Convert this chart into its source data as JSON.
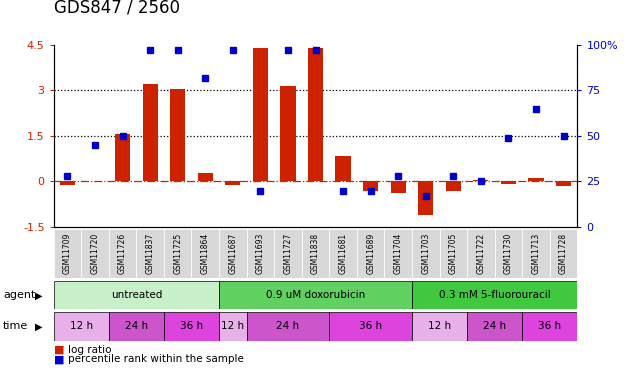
{
  "title": "GDS847 / 2560",
  "samples": [
    "GSM11709",
    "GSM11720",
    "GSM11726",
    "GSM11837",
    "GSM11725",
    "GSM11864",
    "GSM11687",
    "GSM11693",
    "GSM11727",
    "GSM11838",
    "GSM11681",
    "GSM11689",
    "GSM11704",
    "GSM11703",
    "GSM11705",
    "GSM11722",
    "GSM11730",
    "GSM11713",
    "GSM11728"
  ],
  "log_ratio": [
    -0.12,
    0.02,
    1.55,
    3.2,
    3.05,
    0.28,
    -0.12,
    4.4,
    3.15,
    4.4,
    0.85,
    -0.32,
    -0.38,
    -1.1,
    -0.32,
    0.05,
    -0.08,
    0.1,
    -0.15
  ],
  "pct_rank": [
    28,
    45,
    50,
    97,
    97,
    82,
    97,
    20,
    97,
    97,
    20,
    20,
    28,
    17,
    28,
    25,
    49,
    65,
    50
  ],
  "agents": [
    {
      "label": "untreated",
      "start": 0,
      "end": 6,
      "color": "#c8f0c8"
    },
    {
      "label": "0.9 uM doxorubicin",
      "start": 6,
      "end": 13,
      "color": "#60d060"
    },
    {
      "label": "0.3 mM 5-fluorouracil",
      "start": 13,
      "end": 19,
      "color": "#40c840"
    }
  ],
  "times": [
    {
      "label": "12 h",
      "start": 0,
      "end": 2,
      "color": "#e8b0e8"
    },
    {
      "label": "24 h",
      "start": 2,
      "end": 4,
      "color": "#cc55cc"
    },
    {
      "label": "36 h",
      "start": 4,
      "end": 6,
      "color": "#dd44dd"
    },
    {
      "label": "12 h",
      "start": 6,
      "end": 7,
      "color": "#e8b0e8"
    },
    {
      "label": "24 h",
      "start": 7,
      "end": 10,
      "color": "#cc55cc"
    },
    {
      "label": "36 h",
      "start": 10,
      "end": 13,
      "color": "#dd44dd"
    },
    {
      "label": "12 h",
      "start": 13,
      "end": 15,
      "color": "#e8b0e8"
    },
    {
      "label": "24 h",
      "start": 15,
      "end": 17,
      "color": "#cc55cc"
    },
    {
      "label": "36 h",
      "start": 17,
      "end": 19,
      "color": "#dd44dd"
    }
  ],
  "ylim_left": [
    -1.5,
    4.5
  ],
  "ylim_right": [
    0,
    100
  ],
  "yticks_left": [
    -1.5,
    0.0,
    1.5,
    3.0,
    4.5
  ],
  "yticks_right": [
    0,
    25,
    50,
    75,
    100
  ],
  "hlines_dotted": [
    1.5,
    3.0
  ],
  "bar_color": "#cc2200",
  "dot_color": "#0000cc",
  "sample_bg": "#d8d8d8",
  "title_fontsize": 12,
  "tick_fontsize": 7,
  "bar_width": 0.55
}
